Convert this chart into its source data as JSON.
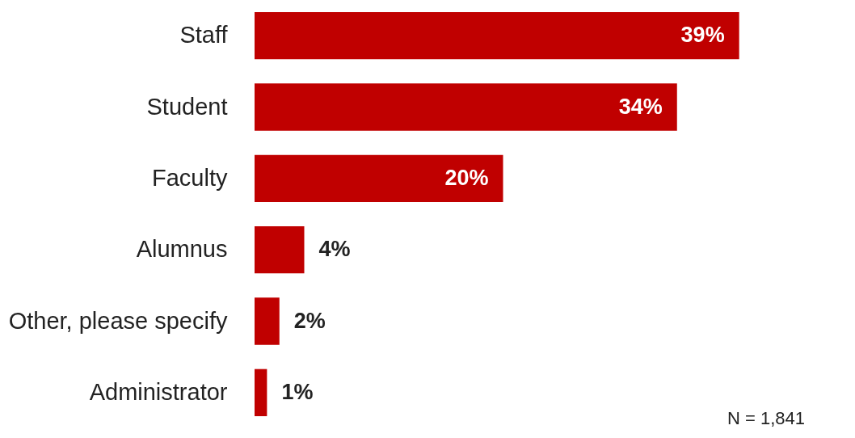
{
  "chart_data": {
    "type": "bar",
    "orientation": "horizontal",
    "categories": [
      "Staff",
      "Student",
      "Faculty",
      "Alumnus",
      "Other, please specify",
      "Administrator"
    ],
    "values": [
      39,
      34,
      20,
      4,
      2,
      1
    ],
    "color": "#c00000",
    "value_labels": [
      "39%",
      "34%",
      "20%",
      "4%",
      "2%",
      "1%"
    ],
    "annotations": [
      "N = 1,841"
    ]
  }
}
